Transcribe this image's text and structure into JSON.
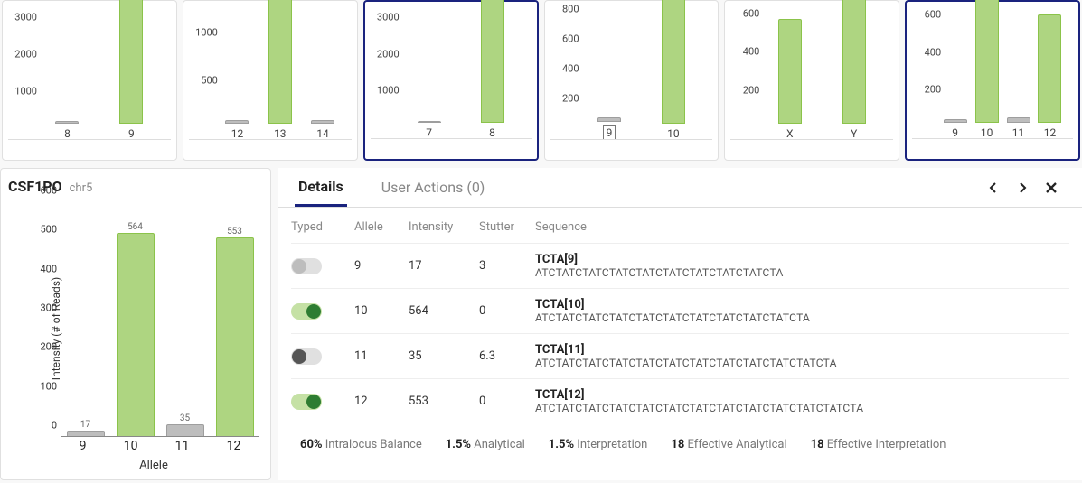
{
  "thumbs": [
    {
      "selected": false,
      "yticks": [
        1000,
        2000,
        3000
      ],
      "ymax": 3600,
      "bars": [
        {
          "x": "8",
          "v": 80,
          "c": "gray"
        },
        {
          "x": "9",
          "v": 3550,
          "c": "green"
        }
      ]
    },
    {
      "selected": false,
      "yticks": [
        500,
        1000
      ],
      "ymax": 1400,
      "bars": [
        {
          "x": "12",
          "v": 40,
          "c": "gray"
        },
        {
          "x": "13",
          "v": 1380,
          "c": "green"
        },
        {
          "x": "14",
          "v": 35,
          "c": "gray"
        }
      ]
    },
    {
      "selected": true,
      "yticks": [
        1000,
        2000,
        3000
      ],
      "ymax": 3600,
      "bars": [
        {
          "x": "7",
          "v": 60,
          "c": "gray"
        },
        {
          "x": "8",
          "v": 3550,
          "c": "green"
        }
      ]
    },
    {
      "selected": false,
      "yticks": [
        200,
        400,
        600,
        800
      ],
      "ymax": 900,
      "bars": [
        {
          "x": "9",
          "v": 30,
          "c": "gray",
          "boxed": true
        },
        {
          "x": "10",
          "v": 870,
          "c": "green"
        }
      ]
    },
    {
      "selected": false,
      "yticks": [
        200,
        400,
        600
      ],
      "ymax": 700,
      "bars": [
        {
          "x": "X",
          "v": 540,
          "c": "green"
        },
        {
          "x": "Y",
          "v": 680,
          "c": "green"
        }
      ]
    },
    {
      "selected": true,
      "yticks": [
        200,
        400,
        600
      ],
      "ymax": 700,
      "bars": [
        {
          "x": "9",
          "v": 18,
          "c": "gray"
        },
        {
          "x": "10",
          "v": 670,
          "c": "green"
        },
        {
          "x": "11",
          "v": 30,
          "c": "gray"
        },
        {
          "x": "12",
          "v": 560,
          "c": "green"
        }
      ]
    }
  ],
  "main": {
    "title": "CSF1PO",
    "subtitle": "chr5",
    "ylabel": "Intensity (# of Reads)",
    "xlabel": "Allele",
    "ymax": 600,
    "yticks": [
      0,
      100,
      200,
      300,
      400,
      500,
      600
    ],
    "bars": [
      {
        "x": "9",
        "v": 17,
        "c": "gray"
      },
      {
        "x": "10",
        "v": 564,
        "c": "green"
      },
      {
        "x": "11",
        "v": 35,
        "c": "gray"
      },
      {
        "x": "12",
        "v": 553,
        "c": "green"
      }
    ]
  },
  "details": {
    "tabs": {
      "details": "Details",
      "userActions": "User Actions (0)"
    },
    "cols": {
      "typed": "Typed",
      "allele": "Allele",
      "intensity": "Intensity",
      "stutter": "Stutter",
      "sequence": "Sequence"
    },
    "rows": [
      {
        "typed": "off-gray",
        "allele": "9",
        "intensity": "17",
        "stutter": "3",
        "seqMain": "TCTA[9]",
        "seqSub": "ATCTATCTATCTATCTATCTATCTATCTATCTATCTA"
      },
      {
        "typed": "on-green",
        "allele": "10",
        "intensity": "564",
        "stutter": "0",
        "seqMain": "TCTA[10]",
        "seqSub": "ATCTATCTATCTATCTATCTATCTATCTATCTATCTATCTA"
      },
      {
        "typed": "off-dark",
        "allele": "11",
        "intensity": "35",
        "stutter": "6.3",
        "seqMain": "TCTA[11]",
        "seqSub": "ATCTATCTATCTATCTATCTATCTATCTATCTATCTATCTATCTA"
      },
      {
        "typed": "on-green",
        "allele": "12",
        "intensity": "553",
        "stutter": "0",
        "seqMain": "TCTA[12]",
        "seqSub": "ATCTATCTATCTATCTATCTATCTATCTATCTATCTATCTATCTATCTA"
      }
    ],
    "footer": [
      {
        "bold": "60%",
        "label": "Intralocus Balance"
      },
      {
        "bold": "1.5%",
        "label": "Analytical"
      },
      {
        "bold": "1.5%",
        "label": "Interpretation"
      },
      {
        "bold": "18",
        "label": "Effective Analytical"
      },
      {
        "bold": "18",
        "label": "Effective Interpretation"
      }
    ]
  },
  "colors": {
    "green": "#aed581",
    "greenBorder": "#8bc34a",
    "gray": "#bdbdbd",
    "accent": "#1a237e",
    "background": "#ffffff"
  }
}
